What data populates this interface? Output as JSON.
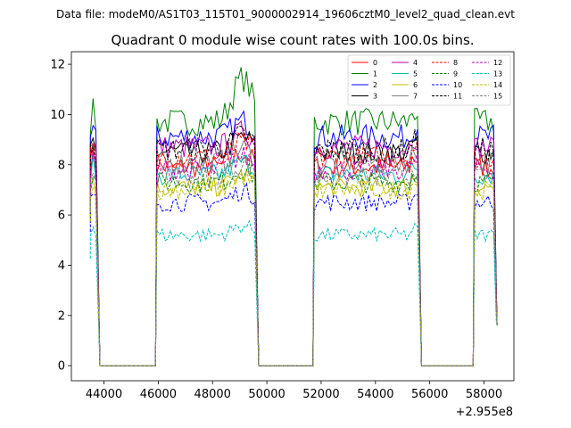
{
  "chart_data": {
    "type": "line",
    "suptitle": "Data file: modeM0/AS1T03_115T01_9000002914_19606cztM0_level2_quad_clean.evt",
    "title": "Quadrant 0 module wise count rates with 100.0s bins.",
    "xlabel": "",
    "ylabel": "",
    "x_offset_label": "+2.955e8",
    "xlim": [
      42800,
      59100
    ],
    "ylim": [
      -0.6,
      12.5
    ],
    "xticks": [
      44000,
      46000,
      48000,
      50000,
      52000,
      54000,
      56000,
      58000
    ],
    "yticks": [
      0,
      2,
      4,
      6,
      8,
      10,
      12
    ],
    "grid": false,
    "legend_position": "top-right",
    "bin_seconds": 100,
    "segments": [
      {
        "start": 43500,
        "end": 43700,
        "zero_end": 45900
      },
      {
        "start": 45950,
        "end": 49550,
        "zero_end": 51700
      },
      {
        "start": 51750,
        "end": 55550,
        "zero_end": 57600
      },
      {
        "start": 57650,
        "end": 58350,
        "zero_end": null
      }
    ],
    "series": [
      {
        "name": "0",
        "color": "#ff0000",
        "dash": "solid",
        "level": 7.9
      },
      {
        "name": "1",
        "color": "#008000",
        "dash": "solid",
        "level": 9.7
      },
      {
        "name": "2",
        "color": "#0000ff",
        "dash": "solid",
        "level": 9.1
      },
      {
        "name": "3",
        "color": "#000000",
        "dash": "solid",
        "level": 8.5
      },
      {
        "name": "4",
        "color": "#bf00bf",
        "dash": "solid",
        "level": 8.7
      },
      {
        "name": "5",
        "color": "#00bfbf",
        "dash": "solid",
        "level": 7.6
      },
      {
        "name": "6",
        "color": "#bfbf00",
        "dash": "solid",
        "level": 7.1
      },
      {
        "name": "7",
        "color": "#808080",
        "dash": "solid",
        "level": 8.1
      },
      {
        "name": "8",
        "color": "#ff0000",
        "dash": "dashed",
        "level": 8.3
      },
      {
        "name": "9",
        "color": "#008000",
        "dash": "dashed",
        "level": 7.3
      },
      {
        "name": "10",
        "color": "#0000ff",
        "dash": "dashed",
        "level": 6.5
      },
      {
        "name": "11",
        "color": "#000000",
        "dash": "dashed",
        "level": 8.6
      },
      {
        "name": "12",
        "color": "#bf00bf",
        "dash": "dashed",
        "level": 7.8
      },
      {
        "name": "13",
        "color": "#00bfbf",
        "dash": "dashed",
        "level": 5.2
      },
      {
        "name": "14",
        "color": "#bfbf00",
        "dash": "dashed",
        "level": 7.0
      },
      {
        "name": "15",
        "color": "#808080",
        "dash": "dashed",
        "level": 7.5
      }
    ]
  }
}
